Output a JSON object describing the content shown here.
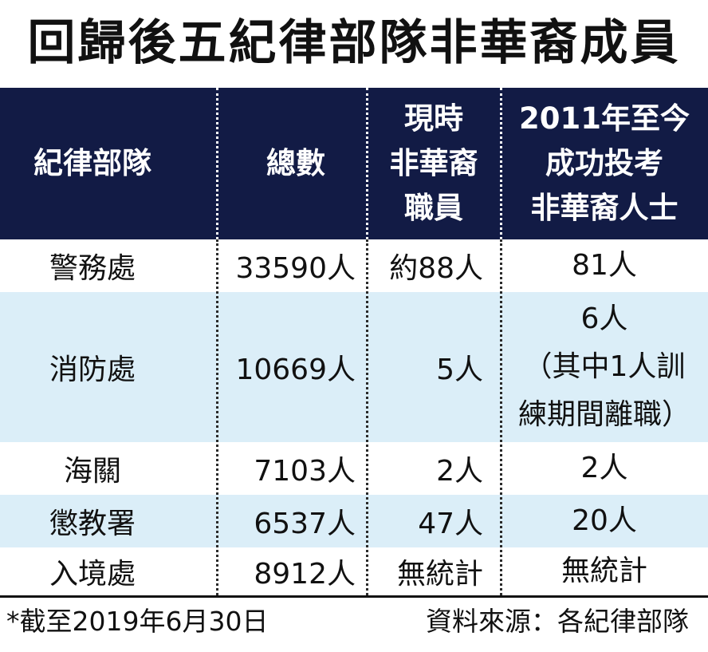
{
  "title": "回歸後五紀律部隊非華裔成員",
  "table": {
    "headers": {
      "department": "紀律部隊",
      "total": "總數",
      "current_staff": [
        "現時",
        "非華裔",
        "職員"
      ],
      "recruited_since_2011": [
        "2011年至今",
        "成功投考",
        "非華裔人士"
      ]
    },
    "rows": [
      {
        "department": "警務處",
        "total": "33590人",
        "current": "約88人",
        "since2011": [
          "81人"
        ]
      },
      {
        "department": "消防處",
        "total": "10669人",
        "current": "5人",
        "since2011": [
          "6人",
          "（其中1人訓",
          "練期間離職）"
        ]
      },
      {
        "department": "海關",
        "total": "7103人",
        "current": "2人",
        "since2011": [
          "2人"
        ]
      },
      {
        "department": "懲教署",
        "total": "6537人",
        "current": "47人",
        "since2011": [
          "20人"
        ]
      },
      {
        "department": "入境處",
        "total": "8912人",
        "current": "無統計",
        "since2011": [
          "無統計"
        ]
      }
    ]
  },
  "footnote": "*截至2019年6月30日",
  "source": "資料來源：各紀律部隊",
  "colors": {
    "header_bg": "#121b45",
    "alt_row_bg": "#dbeef8"
  }
}
